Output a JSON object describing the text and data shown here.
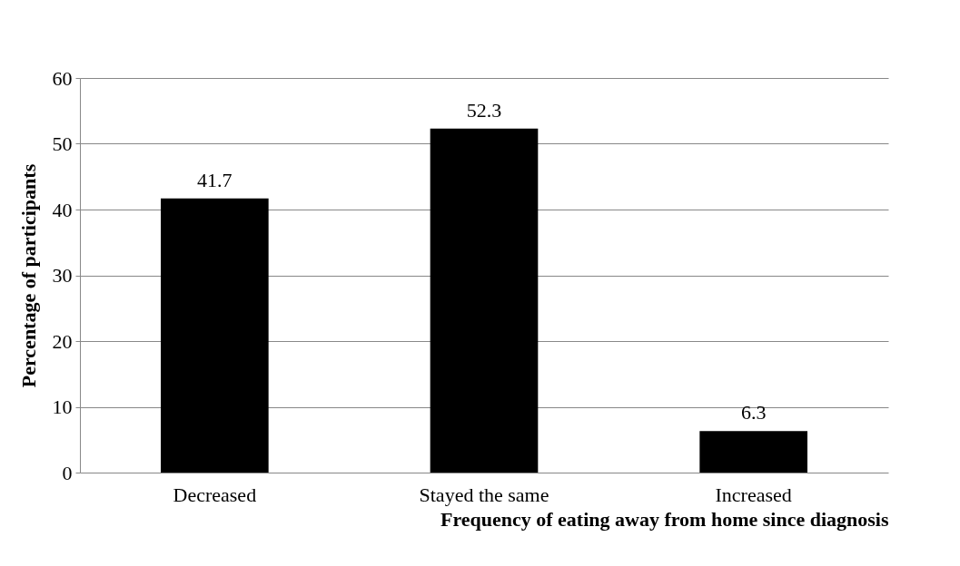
{
  "chart_data": {
    "type": "bar",
    "xlabel": "Frequency of eating away from home since diagnosis",
    "ylabel": "Percentage of participants",
    "categories": [
      "Decreased",
      "Stayed the same",
      "Increased"
    ],
    "values": [
      41.7,
      52.3,
      6.3
    ],
    "color": "#000000",
    "ylim": [
      0,
      60
    ],
    "yticks": [
      0,
      10,
      20,
      30,
      40,
      50,
      60
    ],
    "grid": "y",
    "data_labels": true
  }
}
